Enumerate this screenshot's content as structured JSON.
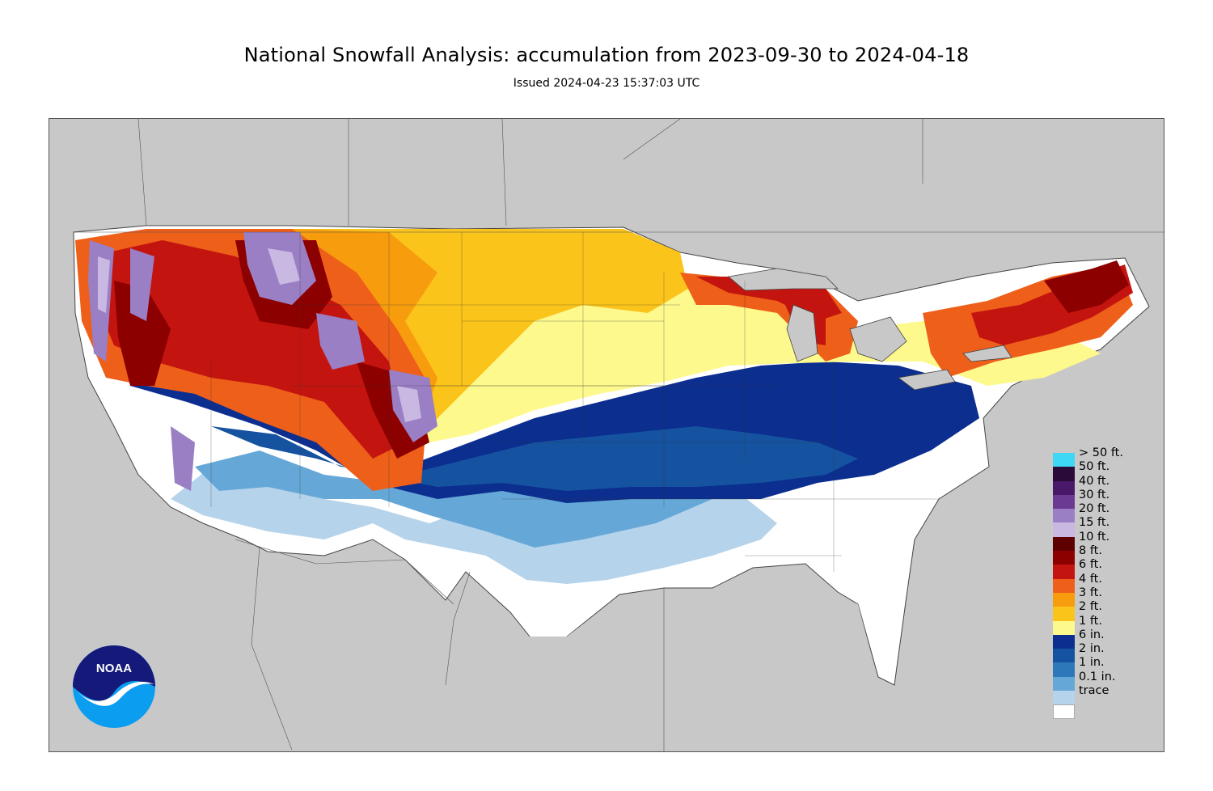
{
  "header": {
    "title": "National Snowfall Analysis: accumulation from 2023-09-30 to 2024-04-18",
    "issued": "Issued 2024-04-23 15:37:03 UTC"
  },
  "logo": {
    "text": "NOAA",
    "icon": "noaa-logo"
  },
  "legend": {
    "items": [
      {
        "label": "> 50 ft.",
        "color": "#3ed8f5"
      },
      {
        "label": "50 ft.",
        "color": "#2a0a38"
      },
      {
        "label": "40 ft.",
        "color": "#4a1868"
      },
      {
        "label": "30 ft.",
        "color": "#6b3a92"
      },
      {
        "label": "20 ft.",
        "color": "#9a7fc4"
      },
      {
        "label": "15 ft.",
        "color": "#c9b8e2"
      },
      {
        "label": "10 ft.",
        "color": "#5e0000"
      },
      {
        "label": "8 ft.",
        "color": "#8c0000"
      },
      {
        "label": "6 ft.",
        "color": "#c4140f"
      },
      {
        "label": "4 ft.",
        "color": "#ee5f1a"
      },
      {
        "label": "3 ft.",
        "color": "#f79c0d"
      },
      {
        "label": "2 ft.",
        "color": "#fbc41a"
      },
      {
        "label": "1 ft.",
        "color": "#fdf98c"
      },
      {
        "label": "6 in.",
        "color": "#0b2e8f"
      },
      {
        "label": "2 in.",
        "color": "#1553a0"
      },
      {
        "label": "1 in.",
        "color": "#2c78b8"
      },
      {
        "label": "0.1 in.",
        "color": "#65a8d8"
      },
      {
        "label": "trace",
        "color": "#b5d3ea"
      },
      {
        "label": "",
        "color": "#ffffff"
      }
    ]
  },
  "colors": {
    "background": "#c8c8c8",
    "land_no_snow": "#ffffff",
    "borders": "#444444"
  }
}
